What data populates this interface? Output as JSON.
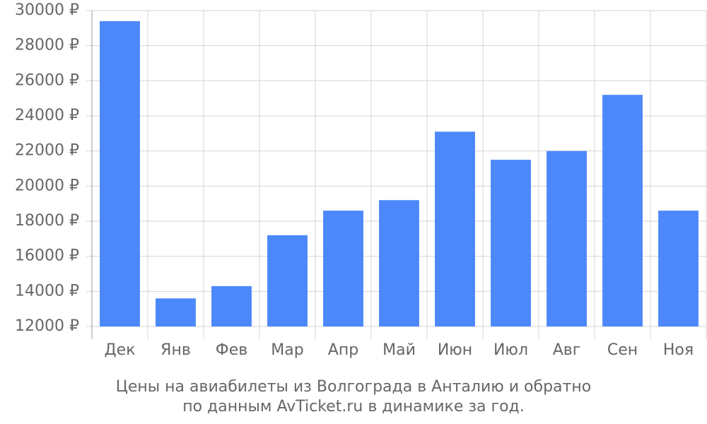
{
  "chart_data": {
    "type": "bar",
    "caption": [
      "Цены на авиабилеты из Волгограда в Анталию и обратно",
      "по данным AvTicket.ru в динамике за год."
    ],
    "categories": [
      "Дек",
      "Янв",
      "Фев",
      "Мар",
      "Апр",
      "Май",
      "Июн",
      "Июл",
      "Авг",
      "Сен",
      "Ноя"
    ],
    "values": [
      29400,
      13600,
      14300,
      17200,
      18600,
      19200,
      23100,
      21500,
      22000,
      25200,
      18600
    ],
    "color": "#4d88fb",
    "ylim": [
      12000,
      30000
    ],
    "yticks": [
      {
        "value": 12000,
        "label": "12000 ₽"
      },
      {
        "value": 14000,
        "label": "14000 ₽"
      },
      {
        "value": 16000,
        "label": "16000 ₽"
      },
      {
        "value": 18000,
        "label": "18000 ₽"
      },
      {
        "value": 20000,
        "label": "20000 ₽"
      },
      {
        "value": 22000,
        "label": "22000 ₽"
      },
      {
        "value": 24000,
        "label": "24000 ₽"
      },
      {
        "value": 26000,
        "label": "26000 ₽"
      },
      {
        "value": 28000,
        "label": "28000 ₽"
      },
      {
        "value": 30000,
        "label": "30000 ₽"
      }
    ],
    "grid": true
  }
}
